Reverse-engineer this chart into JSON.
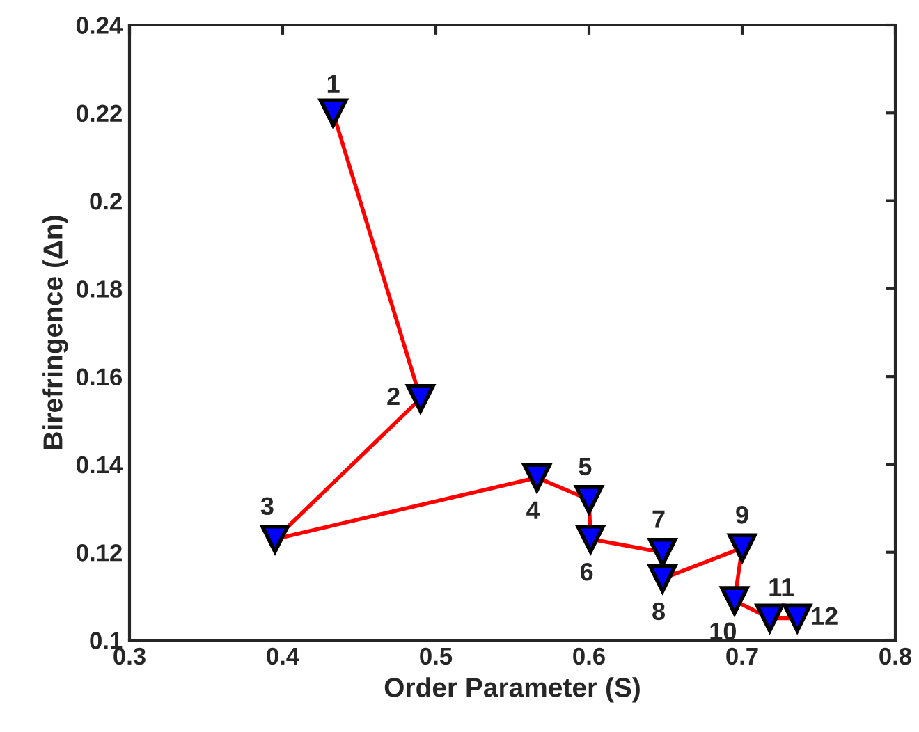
{
  "chart_data": {
    "type": "line",
    "xlabel": "Order Parameter (S)",
    "ylabel": "Birefringence (Δn)",
    "x": [
      0.433,
      0.49,
      0.395,
      0.566,
      0.6,
      0.601,
      0.648,
      0.648,
      0.7,
      0.695,
      0.718,
      0.736
    ],
    "series": [
      {
        "color": "#ff0000",
        "colors": [
          "#0000ff",
          "#0000ff",
          "#0000ff",
          "#0000ff",
          "#0000ff",
          "#0000ff",
          "#0000ff",
          "#0000ff",
          "#0000ff",
          "#0000ff",
          "#0000ff",
          "#0000ff"
        ],
        "values": [
          0.22,
          0.155,
          0.123,
          0.137,
          0.132,
          0.123,
          0.12,
          0.114,
          0.121,
          0.109,
          0.105,
          0.105
        ]
      }
    ],
    "annotations": [
      {
        "text": "1",
        "x": 0.433,
        "y": 0.22
      },
      {
        "text": "2",
        "x": 0.49,
        "y": 0.155
      },
      {
        "text": "3",
        "x": 0.395,
        "y": 0.123
      },
      {
        "text": "4",
        "x": 0.566,
        "y": 0.137
      },
      {
        "text": "5",
        "x": 0.6,
        "y": 0.132
      },
      {
        "text": "6",
        "x": 0.601,
        "y": 0.123
      },
      {
        "text": "7",
        "x": 0.648,
        "y": 0.12
      },
      {
        "text": "8",
        "x": 0.648,
        "y": 0.114
      },
      {
        "text": "9",
        "x": 0.7,
        "y": 0.121
      },
      {
        "text": "10",
        "x": 0.695,
        "y": 0.109
      },
      {
        "text": "11",
        "x": 0.718,
        "y": 0.105
      },
      {
        "text": "12",
        "x": 0.736,
        "y": 0.105
      }
    ],
    "xlim": [
      0.3,
      0.8
    ],
    "ylim": [
      0.1,
      0.24
    ],
    "xticks": [
      0.3,
      0.4,
      0.5,
      0.6,
      0.7,
      0.8
    ],
    "yticks": [
      0.1,
      0.12,
      0.14,
      0.16,
      0.18,
      0.2,
      0.22,
      0.24
    ],
    "marker": "triangle",
    "line_style": "solid",
    "grid": false,
    "legend": false
  }
}
